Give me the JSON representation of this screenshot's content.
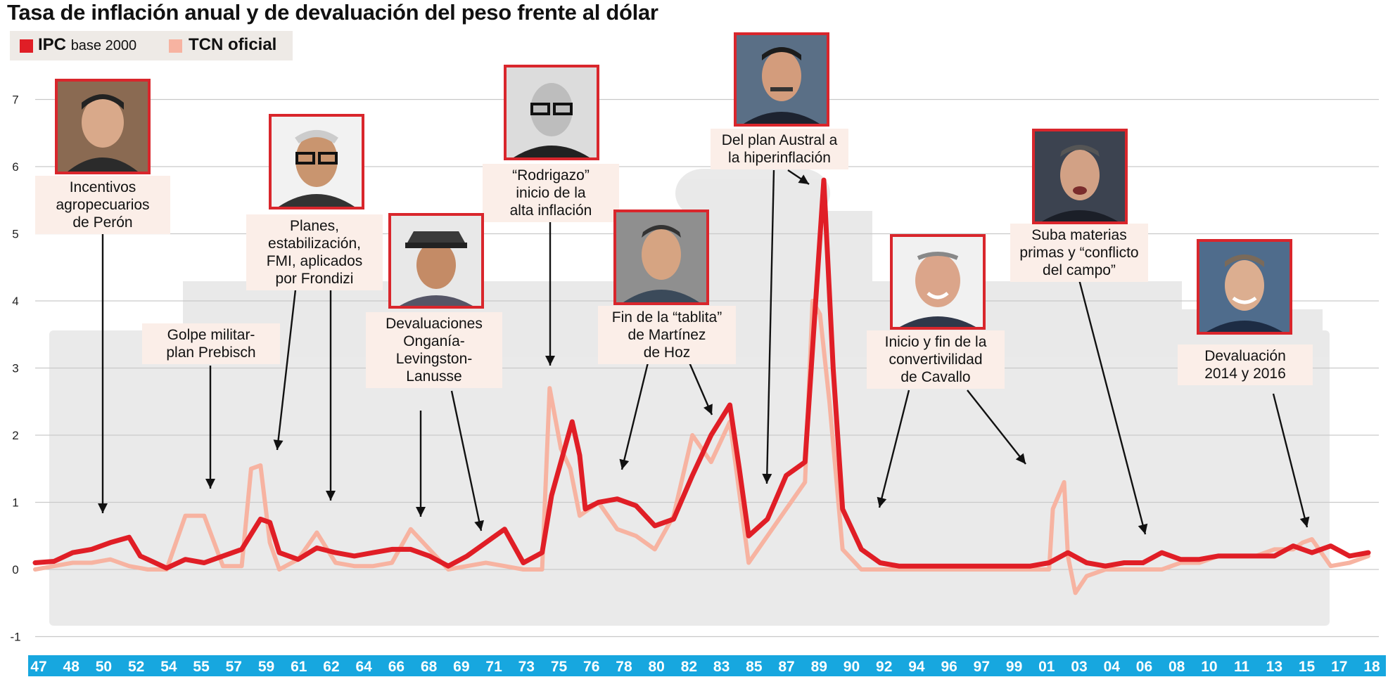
{
  "title": "Tasa de inflación anual y de devaluación del peso frente al dólar",
  "legend": {
    "ipc_strong": "IPC",
    "ipc_rest": "base 2000",
    "tcn": "TCN oficial"
  },
  "colors": {
    "ipc": "#e01e26",
    "tcn": "#f7b3a1",
    "axis_band": "#17a7df",
    "note_bg": "#fbeee8",
    "photo_border": "#d9262c"
  },
  "annotations": [
    {
      "id": "peron",
      "text": "Incentivos agropecuarios de Perón",
      "lines": [
        "Incentivos",
        "agropecuarios",
        "de Perón"
      ],
      "icon": "portrait-peron"
    },
    {
      "id": "prebisch",
      "text": "Golpe militar- plan Prebisch",
      "lines": [
        "Golpe militar-",
        "plan Prebisch"
      ]
    },
    {
      "id": "frondizi",
      "text": "Planes, estabilización, FMI, aplicados por Frondizi",
      "lines": [
        "Planes,",
        "estabilización,",
        "FMI, aplicados",
        "por Frondizi"
      ],
      "icon": "portrait-frondizi"
    },
    {
      "id": "ongania",
      "text": "Devaluaciones Onganía- Levingston- Lanusse",
      "lines": [
        "Devaluaciones",
        "Onganía-",
        "Levingston-",
        "Lanusse"
      ],
      "icon": "portrait-lanusse"
    },
    {
      "id": "rodrigazo",
      "text": "“Rodrigazo” inicio de la alta inflación",
      "lines": [
        "“Rodrigazo”",
        "inicio de la",
        "alta inflación"
      ],
      "icon": "portrait-rodrigo"
    },
    {
      "id": "tablita",
      "text": "Fin de la “tablita” de Martínez de Hoz",
      "lines": [
        "Fin de la “tablita”",
        "de Martínez",
        "de Hoz"
      ],
      "icon": "portrait-martinez-de-hoz"
    },
    {
      "id": "austral",
      "text": "Del plan Austral a la hiperinflación",
      "lines": [
        "Del plan Austral a",
        "la hiperinflación"
      ],
      "icon": "portrait-alfonsin"
    },
    {
      "id": "cavallo",
      "text": "Inicio y fin de la convertivilidad de Cavallo",
      "lines": [
        "Inicio y fin de la",
        "convertivilidad",
        "de Cavallo"
      ],
      "icon": "portrait-cavallo"
    },
    {
      "id": "campo",
      "text": "Suba materias primas y “conflicto del campo”",
      "lines": [
        "Suba materias",
        "primas y “conflicto",
        "del campo”"
      ],
      "icon": "portrait-kirchner"
    },
    {
      "id": "devaluacion",
      "text": "Devaluación 2014 y 2016",
      "lines": [
        "Devaluación",
        "2014 y 2016"
      ],
      "icon": "portrait-macri"
    }
  ],
  "chart_data": {
    "type": "line",
    "title": "Tasa de inflación anual y de devaluación del peso frente al dólar",
    "xlabel": "",
    "ylabel": "",
    "ylim": [
      -1,
      7.5
    ],
    "y_ticks": [
      "-1",
      "0",
      "1",
      "2",
      "3",
      "4",
      "5",
      "6",
      "7"
    ],
    "x_tick_labels": [
      "47",
      "48",
      "50",
      "52",
      "54",
      "55",
      "57",
      "59",
      "61",
      "62",
      "64",
      "66",
      "68",
      "69",
      "71",
      "73",
      "75",
      "76",
      "78",
      "80",
      "82",
      "83",
      "85",
      "87",
      "89",
      "90",
      "92",
      "94",
      "96",
      "97",
      "99",
      "01",
      "03",
      "04",
      "06",
      "08",
      "10",
      "11",
      "13",
      "15",
      "17",
      "18"
    ],
    "x_range": [
      1947,
      2018
    ],
    "grid": true,
    "legend_position": "top-left",
    "series": [
      {
        "name": "IPC base 2000",
        "color": "#e01e26",
        "points": [
          [
            1947,
            0.1
          ],
          [
            1948,
            0.12
          ],
          [
            1949,
            0.25
          ],
          [
            1950,
            0.3
          ],
          [
            1951,
            0.4
          ],
          [
            1952,
            0.48
          ],
          [
            1952.6,
            0.2
          ],
          [
            1953,
            0.15
          ],
          [
            1954,
            0.02
          ],
          [
            1955,
            0.15
          ],
          [
            1956,
            0.1
          ],
          [
            1957,
            0.2
          ],
          [
            1958,
            0.3
          ],
          [
            1959,
            0.75
          ],
          [
            1959.5,
            0.7
          ],
          [
            1960,
            0.25
          ],
          [
            1961,
            0.15
          ],
          [
            1962,
            0.32
          ],
          [
            1963,
            0.25
          ],
          [
            1964,
            0.2
          ],
          [
            1965,
            0.25
          ],
          [
            1966,
            0.3
          ],
          [
            1967,
            0.3
          ],
          [
            1968,
            0.2
          ],
          [
            1969,
            0.05
          ],
          [
            1970,
            0.2
          ],
          [
            1971,
            0.4
          ],
          [
            1972,
            0.6
          ],
          [
            1973,
            0.1
          ],
          [
            1974,
            0.25
          ],
          [
            1974.5,
            1.1
          ],
          [
            1975,
            1.6
          ],
          [
            1975.6,
            2.2
          ],
          [
            1976,
            1.7
          ],
          [
            1976.3,
            0.9
          ],
          [
            1977,
            1.0
          ],
          [
            1978,
            1.05
          ],
          [
            1979,
            0.95
          ],
          [
            1980,
            0.65
          ],
          [
            1981,
            0.75
          ],
          [
            1982,
            1.4
          ],
          [
            1983,
            2.0
          ],
          [
            1984,
            2.45
          ],
          [
            1984.5,
            1.5
          ],
          [
            1985,
            0.5
          ],
          [
            1986,
            0.75
          ],
          [
            1987,
            1.4
          ],
          [
            1988,
            1.6
          ],
          [
            1988.5,
            3.7
          ],
          [
            1989,
            5.8
          ],
          [
            1989.5,
            3.0
          ],
          [
            1990,
            0.9
          ],
          [
            1991,
            0.3
          ],
          [
            1992,
            0.1
          ],
          [
            1993,
            0.05
          ],
          [
            1994,
            0.05
          ],
          [
            1995,
            0.05
          ],
          [
            1996,
            0.05
          ],
          [
            1997,
            0.05
          ],
          [
            1998,
            0.05
          ],
          [
            1999,
            0.05
          ],
          [
            2000,
            0.05
          ],
          [
            2001,
            0.1
          ],
          [
            2002,
            0.25
          ],
          [
            2003,
            0.1
          ],
          [
            2004,
            0.05
          ],
          [
            2005,
            0.1
          ],
          [
            2006,
            0.1
          ],
          [
            2007,
            0.25
          ],
          [
            2008,
            0.15
          ],
          [
            2009,
            0.15
          ],
          [
            2010,
            0.2
          ],
          [
            2011,
            0.2
          ],
          [
            2012,
            0.2
          ],
          [
            2013,
            0.2
          ],
          [
            2014,
            0.35
          ],
          [
            2015,
            0.25
          ],
          [
            2016,
            0.35
          ],
          [
            2017,
            0.2
          ],
          [
            2018,
            0.25
          ]
        ]
      },
      {
        "name": "TCN oficial",
        "color": "#f7b3a1",
        "points": [
          [
            1947,
            0.0
          ],
          [
            1948,
            0.05
          ],
          [
            1949,
            0.1
          ],
          [
            1950,
            0.1
          ],
          [
            1951,
            0.15
          ],
          [
            1952,
            0.05
          ],
          [
            1953,
            0.0
          ],
          [
            1954,
            0.0
          ],
          [
            1955,
            0.8
          ],
          [
            1956,
            0.8
          ],
          [
            1957,
            0.05
          ],
          [
            1958,
            0.05
          ],
          [
            1958.5,
            1.5
          ],
          [
            1959,
            1.55
          ],
          [
            1959.5,
            0.4
          ],
          [
            1960,
            0.0
          ],
          [
            1961,
            0.15
          ],
          [
            1962,
            0.55
          ],
          [
            1963,
            0.1
          ],
          [
            1964,
            0.05
          ],
          [
            1965,
            0.05
          ],
          [
            1966,
            0.1
          ],
          [
            1967,
            0.6
          ],
          [
            1968,
            0.3
          ],
          [
            1969,
            0.0
          ],
          [
            1970,
            0.05
          ],
          [
            1971,
            0.1
          ],
          [
            1972,
            0.05
          ],
          [
            1973,
            0.0
          ],
          [
            1974,
            0.0
          ],
          [
            1974.4,
            2.7
          ],
          [
            1975,
            1.8
          ],
          [
            1975.5,
            1.5
          ],
          [
            1976,
            0.8
          ],
          [
            1977,
            1.0
          ],
          [
            1978,
            0.6
          ],
          [
            1979,
            0.5
          ],
          [
            1980,
            0.3
          ],
          [
            1981,
            0.8
          ],
          [
            1982,
            2.0
          ],
          [
            1983,
            1.6
          ],
          [
            1984,
            2.2
          ],
          [
            1985,
            0.1
          ],
          [
            1986,
            0.5
          ],
          [
            1987,
            0.9
          ],
          [
            1988,
            1.3
          ],
          [
            1988.4,
            4.0
          ],
          [
            1988.8,
            3.8
          ],
          [
            1989.3,
            2.5
          ],
          [
            1990,
            0.3
          ],
          [
            1991,
            0.0
          ],
          [
            1992,
            0.0
          ],
          [
            1993,
            0.0
          ],
          [
            1994,
            0.0
          ],
          [
            1995,
            0.0
          ],
          [
            1996,
            0.0
          ],
          [
            1997,
            0.0
          ],
          [
            1998,
            0.0
          ],
          [
            1999,
            0.0
          ],
          [
            2000,
            0.0
          ],
          [
            2001,
            0.0
          ],
          [
            2001.2,
            0.9
          ],
          [
            2001.8,
            1.3
          ],
          [
            2002,
            0.2
          ],
          [
            2002.4,
            -0.35
          ],
          [
            2003,
            -0.1
          ],
          [
            2004,
            0.0
          ],
          [
            2005,
            0.0
          ],
          [
            2006,
            0.0
          ],
          [
            2007,
            0.0
          ],
          [
            2008,
            0.1
          ],
          [
            2009,
            0.1
          ],
          [
            2010,
            0.2
          ],
          [
            2011,
            0.2
          ],
          [
            2012,
            0.2
          ],
          [
            2013,
            0.3
          ],
          [
            2014,
            0.3
          ],
          [
            2014.5,
            0.4
          ],
          [
            2015,
            0.45
          ],
          [
            2016,
            0.05
          ],
          [
            2017,
            0.1
          ],
          [
            2018,
            0.2
          ]
        ]
      }
    ]
  }
}
